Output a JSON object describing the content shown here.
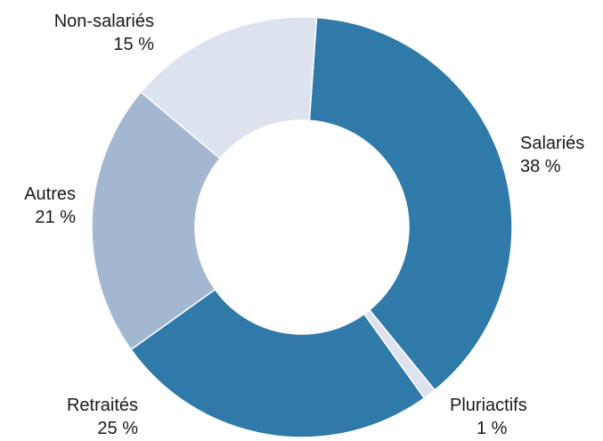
{
  "chart_data": {
    "type": "pie",
    "donut": true,
    "title": "",
    "slices": [
      {
        "label": "Salariés",
        "value": 38,
        "value_label": "38 %",
        "color": "#2f7aa8"
      },
      {
        "label": "Pluriactifs",
        "value": 1,
        "value_label": "1 %",
        "color": "#dde2ef"
      },
      {
        "label": "Retraités",
        "value": 25,
        "value_label": "25 %",
        "color": "#2f7aa8"
      },
      {
        "label": "Autres",
        "value": 21,
        "value_label": "21 %",
        "color": "#a3b7d1"
      },
      {
        "label": "Non-salariés",
        "value": 15,
        "value_label": "15 %",
        "color": "#dde2ef"
      }
    ]
  }
}
